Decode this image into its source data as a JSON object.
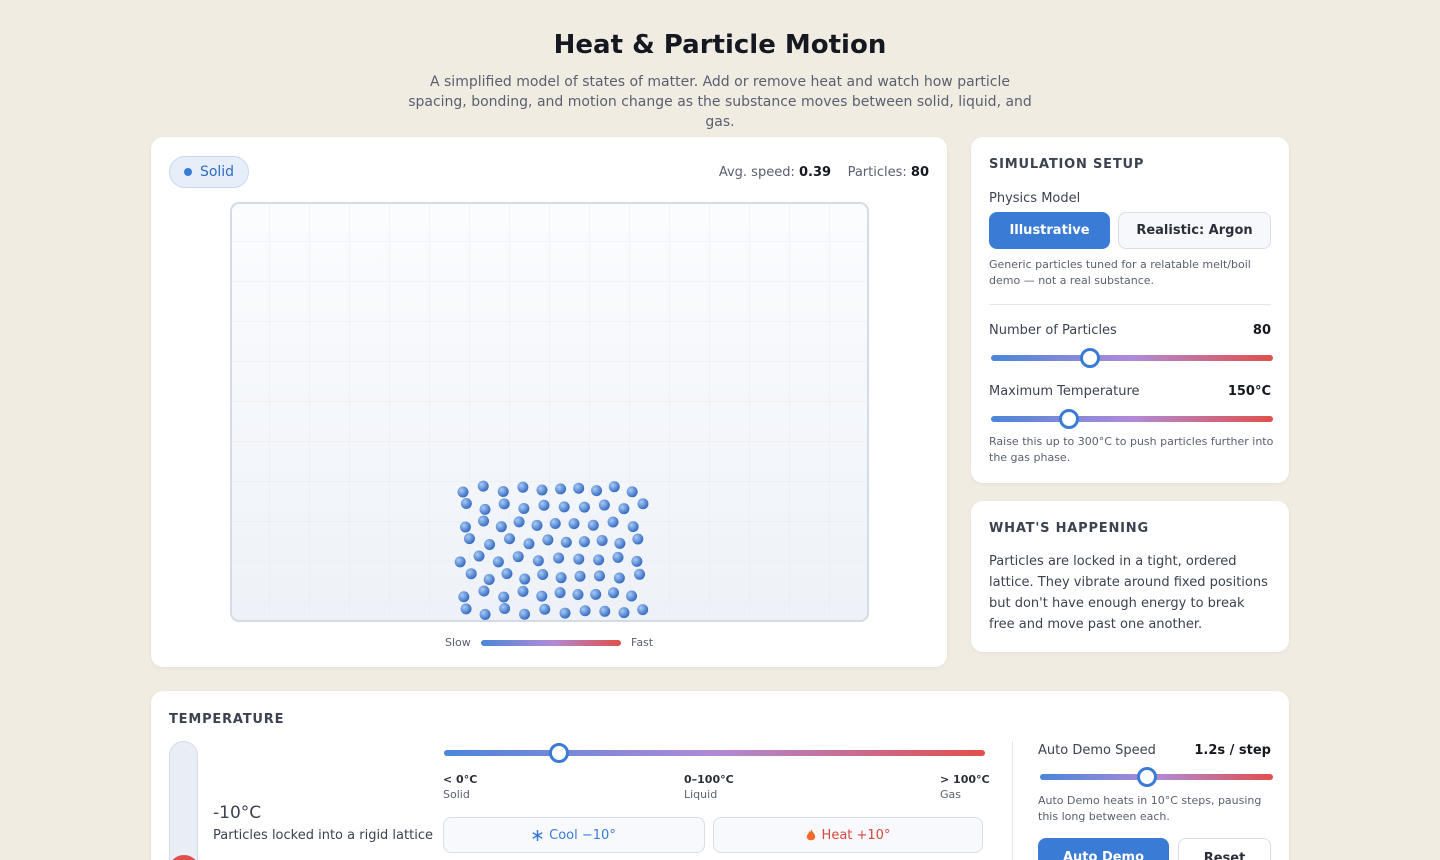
{
  "header": {
    "title": "Heat & Particle Motion",
    "subtitle": "A simplified model of states of matter. Add or remove heat and watch how particle spacing, bonding, and motion change as the substance moves between solid, liquid, and gas."
  },
  "simulation": {
    "state": "Solid",
    "avg_speed_label": "Avg. speed:",
    "avg_speed": 0.39,
    "particles_label": "Particles:",
    "particles": 80,
    "legend_slow": "Slow",
    "legend_fast": "Fast"
  },
  "setup": {
    "title": "SIMULATION SETUP",
    "model_label": "Physics Model",
    "models": [
      "Illustrative",
      "Realistic: Argon"
    ],
    "model_note": "Generic particles tuned for a relatable melt/boil demo — not a real substance.",
    "particles_label": "Number of Particles",
    "particles_value": 80,
    "max_temp_label": "Maximum Temperature",
    "max_temp_value": "150°C",
    "max_temp_note": "Raise this up to 300°C to push particles further into the gas phase."
  },
  "happening": {
    "title": "WHAT'S HAPPENING",
    "text": "Particles are locked in a tight, ordered lattice. They vibrate around fixed positions but don't have enough energy to break free and move past one another."
  },
  "temperature": {
    "title": "TEMPERATURE",
    "reading": "-10°C",
    "description": "Particles locked into a rigid lattice",
    "scale": [
      {
        "range": "< 0°C",
        "state": "Solid"
      },
      {
        "range": "0–100°C",
        "state": "Liquid"
      },
      {
        "range": "> 100°C",
        "state": "Gas"
      }
    ],
    "cool": "Cool −10°",
    "heat": "Heat +10°"
  },
  "auto_demo": {
    "label": "Auto Demo Speed",
    "value": "1.2s / step",
    "note": "Auto Demo heats in 10°C steps, pausing this long between each.",
    "buttons": [
      "Auto Demo",
      "Reset"
    ]
  }
}
